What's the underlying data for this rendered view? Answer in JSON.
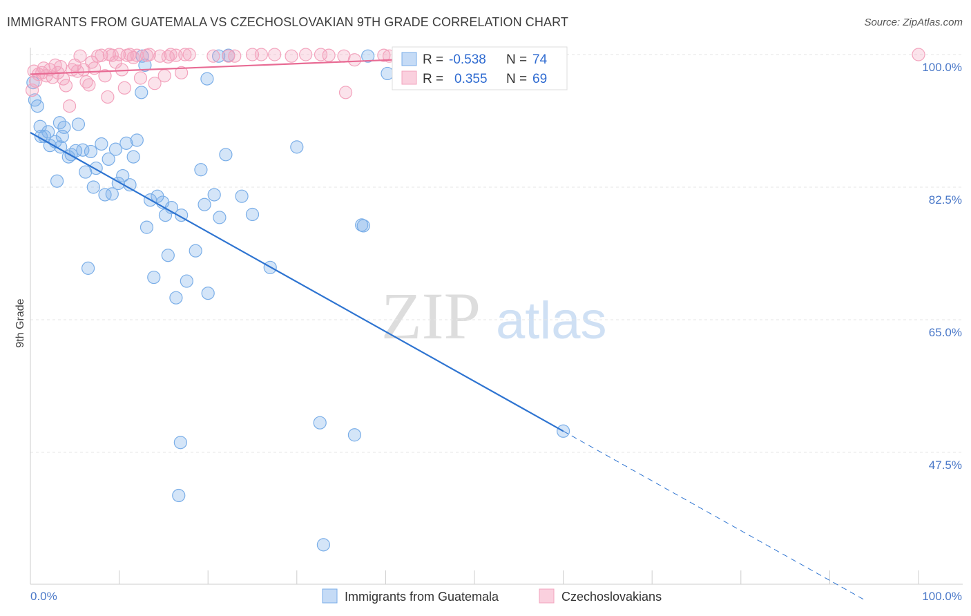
{
  "title": "IMMIGRANTS FROM GUATEMALA VS CZECHOSLOVAKIAN 9TH GRADE CORRELATION CHART",
  "source": "Source: ZipAtlas.com",
  "watermark": {
    "zip": "ZIP",
    "atlas": "atlas"
  },
  "chart_data": {
    "type": "scatter",
    "ylabel": "9th Grade",
    "xlim": [
      0,
      100
    ],
    "ylim": [
      28,
      102
    ],
    "x_ticks": [
      {
        "value": 0,
        "label": "0.0%"
      },
      {
        "value": 100,
        "label": "100.0%"
      }
    ],
    "y_ticks": [
      {
        "value": 100,
        "label": "100.0%"
      },
      {
        "value": 82.5,
        "label": "82.5%"
      },
      {
        "value": 65.0,
        "label": "65.0%"
      },
      {
        "value": 47.5,
        "label": "47.5%"
      }
    ],
    "legend": {
      "entries": [
        {
          "r_label": "R =",
          "r_value": "-0.538",
          "n_label": "N =",
          "n_value": "74"
        },
        {
          "r_label": "R =",
          "r_value": "0.355",
          "n_label": "N =",
          "n_value": "69"
        }
      ]
    },
    "series": [
      {
        "name": "Immigrants from Guatemala",
        "color": "#7aaee8",
        "line_color": "#2e74d1",
        "trend": {
          "x0": 0,
          "y0": 89.7,
          "x1": 60,
          "y1": 50.3,
          "dash_to_x": 100
        },
        "points": [
          [
            0.3,
            96.3
          ],
          [
            0.5,
            94.0
          ],
          [
            0.8,
            93.2
          ],
          [
            1.1,
            90.5
          ],
          [
            1.2,
            89.2
          ],
          [
            1.6,
            89.2
          ],
          [
            2.0,
            89.8
          ],
          [
            2.2,
            88.0
          ],
          [
            2.8,
            88.5
          ],
          [
            3.4,
            87.8
          ],
          [
            3.6,
            89.2
          ],
          [
            3.8,
            90.4
          ],
          [
            4.3,
            86.5
          ],
          [
            4.6,
            86.8
          ],
          [
            5.1,
            87.3
          ],
          [
            5.4,
            90.8
          ],
          [
            5.9,
            87.4
          ],
          [
            6.2,
            84.5
          ],
          [
            6.8,
            87.2
          ],
          [
            7.1,
            82.5
          ],
          [
            7.4,
            85.0
          ],
          [
            8.0,
            88.2
          ],
          [
            8.4,
            81.5
          ],
          [
            8.8,
            86.2
          ],
          [
            9.2,
            81.6
          ],
          [
            9.6,
            87.5
          ],
          [
            9.9,
            83.0
          ],
          [
            10.4,
            84.0
          ],
          [
            10.8,
            88.3
          ],
          [
            11.2,
            82.8
          ],
          [
            11.6,
            86.5
          ],
          [
            12.0,
            88.7
          ],
          [
            12.5,
            95.0
          ],
          [
            13.1,
            77.2
          ],
          [
            13.5,
            80.8
          ],
          [
            13.9,
            70.6
          ],
          [
            14.3,
            81.3
          ],
          [
            14.9,
            80.5
          ],
          [
            15.2,
            78.8
          ],
          [
            15.5,
            73.5
          ],
          [
            15.9,
            79.8
          ],
          [
            16.4,
            67.9
          ],
          [
            17.0,
            78.8
          ],
          [
            17.6,
            70.1
          ],
          [
            18.6,
            74.1
          ],
          [
            19.2,
            84.8
          ],
          [
            19.6,
            80.2
          ],
          [
            20.0,
            68.5
          ],
          [
            20.7,
            81.5
          ],
          [
            21.3,
            78.5
          ],
          [
            22.0,
            86.8
          ],
          [
            21.2,
            99.8
          ],
          [
            19.9,
            96.8
          ],
          [
            22.3,
            99.9
          ],
          [
            23.8,
            81.3
          ],
          [
            25.0,
            78.9
          ],
          [
            27.0,
            71.9
          ],
          [
            30.0,
            87.8
          ],
          [
            32.6,
            51.4
          ],
          [
            33.0,
            35.3
          ],
          [
            37.3,
            77.5
          ],
          [
            36.5,
            49.8
          ],
          [
            37.5,
            77.4
          ],
          [
            38.0,
            99.8
          ],
          [
            40.2,
            97.5
          ],
          [
            41.6,
            99.4
          ],
          [
            16.9,
            48.8
          ],
          [
            16.7,
            41.8
          ],
          [
            12.9,
            98.6
          ],
          [
            3.0,
            83.3
          ],
          [
            6.5,
            71.8
          ],
          [
            12.6,
            99.8
          ],
          [
            60.0,
            50.3
          ],
          [
            3.3,
            91.0
          ]
        ]
      },
      {
        "name": "Czechoslovakians",
        "color": "#f3a3bd",
        "line_color": "#e86b94",
        "trend": {
          "x0": 0,
          "y0": 97.4,
          "x1": 45,
          "y1": 99.5
        },
        "points": [
          [
            0.2,
            95.3
          ],
          [
            0.4,
            97.8
          ],
          [
            0.6,
            96.5
          ],
          [
            0.9,
            97.4
          ],
          [
            1.3,
            97.6
          ],
          [
            1.5,
            98.2
          ],
          [
            1.8,
            97.2
          ],
          [
            2.2,
            98.0
          ],
          [
            2.5,
            97.0
          ],
          [
            2.8,
            98.6
          ],
          [
            3.1,
            97.6
          ],
          [
            3.4,
            98.4
          ],
          [
            3.7,
            96.8
          ],
          [
            4.0,
            95.9
          ],
          [
            4.4,
            93.2
          ],
          [
            4.7,
            98.0
          ],
          [
            5.0,
            98.6
          ],
          [
            5.3,
            97.8
          ],
          [
            5.6,
            99.8
          ],
          [
            6.0,
            98.0
          ],
          [
            6.3,
            96.4
          ],
          [
            6.6,
            96.0
          ],
          [
            6.9,
            99.0
          ],
          [
            7.2,
            98.2
          ],
          [
            7.6,
            99.8
          ],
          [
            8.0,
            99.9
          ],
          [
            8.4,
            97.2
          ],
          [
            8.7,
            94.4
          ],
          [
            8.9,
            100.0
          ],
          [
            9.2,
            99.9
          ],
          [
            9.6,
            99.0
          ],
          [
            10.0,
            100.0
          ],
          [
            10.3,
            98.0
          ],
          [
            10.6,
            95.6
          ],
          [
            10.9,
            99.9
          ],
          [
            11.2,
            100.0
          ],
          [
            11.6,
            99.6
          ],
          [
            12.0,
            99.9
          ],
          [
            12.4,
            96.9
          ],
          [
            13.1,
            99.9
          ],
          [
            13.4,
            100.0
          ],
          [
            14.0,
            96.2
          ],
          [
            14.6,
            99.8
          ],
          [
            15.1,
            97.2
          ],
          [
            15.5,
            99.7
          ],
          [
            15.8,
            100.0
          ],
          [
            16.4,
            99.9
          ],
          [
            17.0,
            97.6
          ],
          [
            17.4,
            100.0
          ],
          [
            17.9,
            100.0
          ],
          [
            20.6,
            99.8
          ],
          [
            22.3,
            99.8
          ],
          [
            23.0,
            99.8
          ],
          [
            25.0,
            100.0
          ],
          [
            26.0,
            100.0
          ],
          [
            27.5,
            100.0
          ],
          [
            29.4,
            99.8
          ],
          [
            31.0,
            100.0
          ],
          [
            32.7,
            100.0
          ],
          [
            33.6,
            99.9
          ],
          [
            35.3,
            99.8
          ],
          [
            36.5,
            99.3
          ],
          [
            39.8,
            99.9
          ],
          [
            40.4,
            99.8
          ],
          [
            42.7,
            99.9
          ],
          [
            43.3,
            100.0
          ],
          [
            45.5,
            99.8
          ],
          [
            100.0,
            100.0
          ],
          [
            35.5,
            95.0
          ]
        ]
      }
    ]
  }
}
